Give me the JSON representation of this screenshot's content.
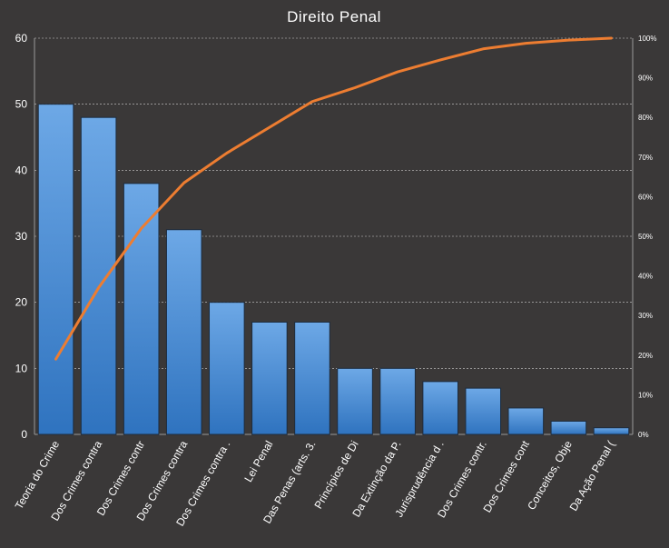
{
  "chart_data": {
    "type": "bar",
    "title": "Direito  Penal",
    "categories": [
      "Teoria do Crime",
      "Dos Crimes contra",
      "Dos Crimes contr",
      "Dos Crimes contra",
      "Dos Crimes contra .",
      "Lei Penal",
      "Das Penas (arts. 3.",
      "Princípios de Di",
      "Da Extinção da P.",
      "Jurisprudência d .",
      "Dos Crimes contr.",
      "Dos Crimes cont",
      "Conceitos, Obje",
      "Da Ação Penal ("
    ],
    "series": [
      {
        "type": "bar",
        "values": [
          50,
          48,
          38,
          31,
          20,
          17,
          17,
          10,
          10,
          8,
          7,
          4,
          2,
          1
        ]
      },
      {
        "type": "line",
        "axis": "secondary",
        "values": [
          0.19,
          0.37,
          0.52,
          0.635,
          0.71,
          0.775,
          0.84,
          0.875,
          0.915,
          0.945,
          0.973,
          0.987,
          0.995,
          1.0
        ]
      }
    ],
    "ylim": [
      0,
      60
    ],
    "yticks": [
      "0",
      "10",
      "20",
      "30",
      "40",
      "50",
      "60"
    ],
    "y2lim": [
      0,
      1
    ],
    "y2ticks": [
      "0%",
      "10%",
      "20%",
      "30%",
      "40%",
      "50%",
      "60%",
      "70%",
      "80%",
      "90%",
      "100%"
    ],
    "grid": true,
    "colors": {
      "background": "#3a3838",
      "bar_top": "#6da8e6",
      "bar_bottom": "#2f73bf",
      "bar_stroke": "#1d2c3e",
      "line": "#ed7d31",
      "grid": "#cfcfcf",
      "text": "#ffffff"
    }
  }
}
